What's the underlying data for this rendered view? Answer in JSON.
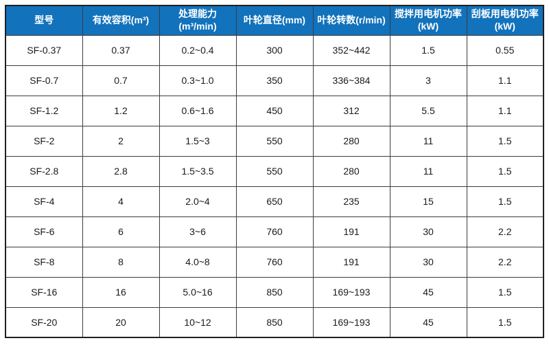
{
  "meta": {
    "accent_color": "#1272BC",
    "header_text_color": "#ffffff",
    "body_text_color": "#1a1a1a",
    "border_color": "#3c3c3c"
  },
  "table": {
    "headers": [
      "型号",
      "有效容积(m³)",
      "处理能力\n(m³/min)",
      "叶轮直径(mm)",
      "叶轮转数(r/min)",
      "搅拌用电机功率\n(kW)",
      "刮板用电机功率\n(kW)"
    ],
    "rows": [
      {
        "cells": [
          "SF-0.37",
          "0.37",
          "0.2~0.4",
          "300",
          "352~442",
          "1.5",
          "0.55"
        ]
      },
      {
        "cells": [
          "SF-0.7",
          "0.7",
          "0.3~1.0",
          "350",
          "336~384",
          "3",
          "1.1"
        ]
      },
      {
        "cells": [
          "SF-1.2",
          "1.2",
          "0.6~1.6",
          "450",
          "312",
          "5.5",
          "1.1"
        ]
      },
      {
        "cells": [
          "SF-2",
          "2",
          "1.5~3",
          "550",
          "280",
          "11",
          "1.5"
        ]
      },
      {
        "cells": [
          "SF-2.8",
          "2.8",
          "1.5~3.5",
          "550",
          "280",
          "11",
          "1.5"
        ]
      },
      {
        "cells": [
          "SF-4",
          "4",
          "2.0~4",
          "650",
          "235",
          "15",
          "1.5"
        ]
      },
      {
        "cells": [
          "SF-6",
          "6",
          "3~6",
          "760",
          "191",
          "30",
          "2.2"
        ]
      },
      {
        "cells": [
          "SF-8",
          "8",
          "4.0~8",
          "760",
          "191",
          "30",
          "2.2"
        ]
      },
      {
        "cells": [
          "SF-16",
          "16",
          "5.0~16",
          "850",
          "169~193",
          "45",
          "1.5"
        ]
      },
      {
        "cells": [
          "SF-20",
          "20",
          "10~12",
          "850",
          "169~193",
          "45",
          "1.5"
        ]
      }
    ]
  }
}
